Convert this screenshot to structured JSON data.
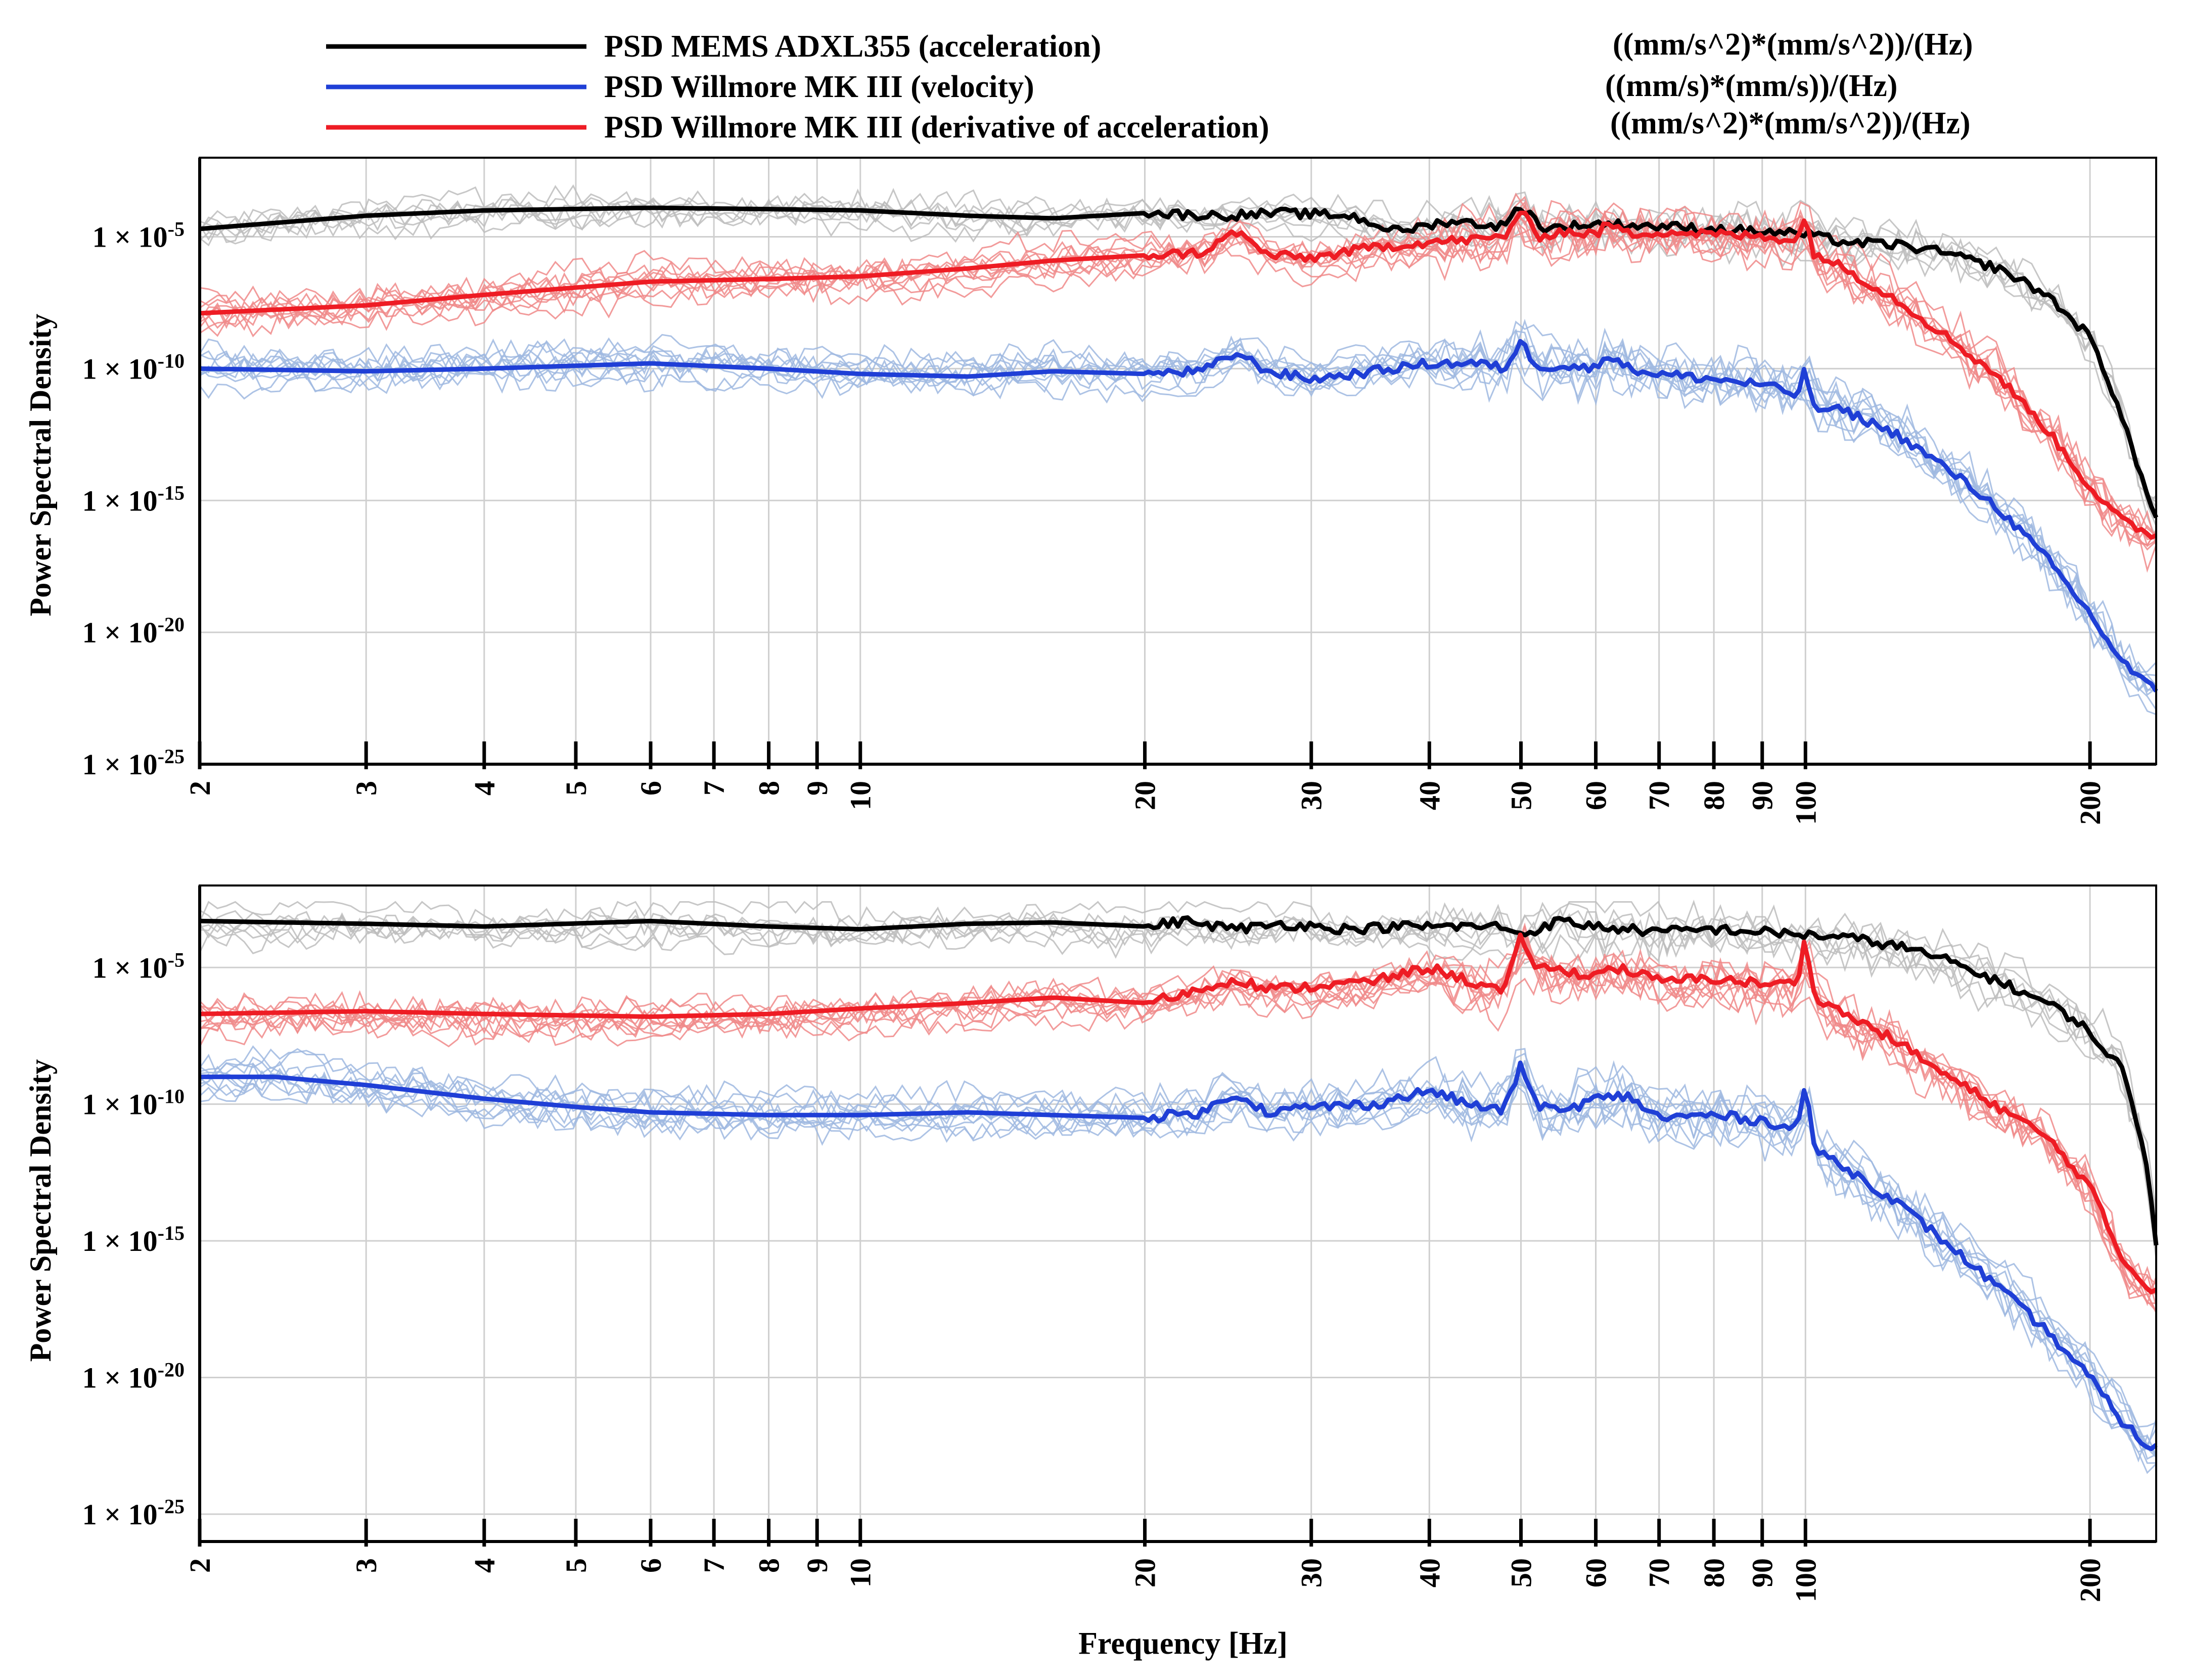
{
  "chart_data": {
    "type": "line",
    "shared": {
      "xscale": "log",
      "xlim": [
        2,
        235
      ],
      "yscale": "log",
      "x_ticks": [
        2,
        3,
        4,
        5,
        6,
        7,
        8,
        9,
        10,
        20,
        30,
        40,
        50,
        60,
        70,
        80,
        90,
        100,
        200
      ],
      "x_tick_labels": [
        "2",
        "3",
        "4",
        "5",
        "6",
        "7",
        "8",
        "9",
        "10",
        "20",
        "30",
        "40",
        "50",
        "60",
        "70",
        "80",
        "90",
        "100",
        "200"
      ],
      "xlabel": "Frequency [Hz]",
      "grid": true,
      "legend": {
        "placement": "top",
        "entries": [
          {
            "label": "PSD MEMS ADXL355 (acceleration)",
            "unit": "((mm/s^2)*(mm/s^2))/(Hz)",
            "color": "#000000"
          },
          {
            "label": "PSD Willmore MK III (velocity)",
            "unit": "((mm/s)*(mm/s))/(Hz)",
            "color": "#1f3fd6"
          },
          {
            "label": "PSD Willmore MK III (derivative of acceleration)",
            "unit": "((mm/s^2)*(mm/s^2))/(Hz)",
            "color": "#ee1c24"
          }
        ]
      },
      "individual_trace_colors": {
        "black": "#bdbdbd",
        "blue": "#9fb8e0",
        "red": "#f08a8a"
      }
    },
    "panels": [
      {
        "ylabel": "Power Spectral Density",
        "ylim_log10": [
          -25,
          -2
        ],
        "y_ticks": [
          {
            "mantissa": "1 × 10",
            "exponent": "-5",
            "log10": -5
          },
          {
            "mantissa": "1 × 10",
            "exponent": "-10",
            "log10": -10
          },
          {
            "mantissa": "1 × 10",
            "exponent": "-15",
            "log10": -15
          },
          {
            "mantissa": "1 × 10",
            "exponent": "-20",
            "log10": -20
          },
          {
            "mantissa": "1 × 10",
            "exponent": "-25",
            "log10": -25
          }
        ],
        "series": [
          {
            "name": "PSD MEMS ADXL355 (acceleration)",
            "color": "#000000",
            "x": [
              2,
              3,
              4,
              6,
              8,
              10,
              13,
              16,
              20,
              24,
              28,
              33,
              37,
              42,
              48,
              50,
              53,
              60,
              70,
              80,
              90,
              100,
              110,
              125,
              140,
              160,
              180,
              200,
              215,
              228,
              235
            ],
            "log10_y": [
              -4.7,
              -4.2,
              -4.0,
              -3.9,
              -3.95,
              -4.0,
              -4.2,
              -4.3,
              -4.1,
              -4.2,
              -4.1,
              -4.2,
              -4.8,
              -4.4,
              -4.6,
              -3.8,
              -4.7,
              -4.5,
              -4.6,
              -4.7,
              -4.8,
              -4.9,
              -5.2,
              -5.3,
              -5.6,
              -6.2,
              -7.2,
              -8.8,
              -11.5,
              -14.5,
              -15.5
            ]
          },
          {
            "name": "PSD Willmore MK III (velocity)",
            "color": "#1f3fd6",
            "x": [
              2,
              3,
              4,
              6,
              8,
              10,
              13,
              16,
              20,
              23,
              25,
              27,
              30,
              35,
              40,
              45,
              48,
              50,
              52,
              55,
              60,
              62,
              65,
              70,
              80,
              90,
              98,
              100,
              102,
              110,
              125,
              140,
              160,
              180,
              200,
              215,
              228,
              235
            ],
            "log10_y": [
              -10.0,
              -10.1,
              -10.0,
              -9.8,
              -10.0,
              -10.2,
              -10.3,
              -10.1,
              -10.2,
              -10.1,
              -9.4,
              -10.1,
              -10.4,
              -10.1,
              -9.8,
              -9.8,
              -10.0,
              -9.0,
              -9.9,
              -9.9,
              -10.0,
              -9.4,
              -10.0,
              -10.2,
              -10.4,
              -10.6,
              -11.0,
              -10.0,
              -11.5,
              -11.6,
              -12.5,
              -13.7,
              -15.3,
              -17.2,
              -19.3,
              -21.0,
              -21.9,
              -22.2
            ]
          },
          {
            "name": "PSD Willmore MK III (derivative of acceleration)",
            "color": "#ee1c24",
            "x": [
              2,
              3,
              4,
              6,
              8,
              10,
              13,
              16,
              20,
              23,
              25,
              27,
              30,
              35,
              40,
              45,
              48,
              50,
              52,
              55,
              60,
              62,
              65,
              70,
              80,
              90,
              98,
              100,
              102,
              110,
              125,
              140,
              160,
              180,
              200,
              215,
              228,
              235
            ],
            "log10_y": [
              -7.9,
              -7.6,
              -7.2,
              -6.7,
              -6.6,
              -6.5,
              -6.2,
              -5.9,
              -5.7,
              -5.6,
              -4.8,
              -5.7,
              -5.8,
              -5.4,
              -5.2,
              -5.1,
              -5.0,
              -4.0,
              -5.0,
              -4.8,
              -4.9,
              -4.5,
              -4.9,
              -4.8,
              -4.9,
              -5.0,
              -5.1,
              -4.3,
              -5.6,
              -6.2,
              -7.4,
              -8.7,
              -10.3,
              -12.3,
              -14.5,
              -15.7,
              -16.2,
              -16.3
            ]
          }
        ]
      },
      {
        "ylabel": "Power Spectral Density",
        "ylim_log10": [
          -26,
          -2
        ],
        "y_ticks": [
          {
            "mantissa": "1 × 10",
            "exponent": "-5",
            "log10": -5
          },
          {
            "mantissa": "1 × 10",
            "exponent": "-10",
            "log10": -10
          },
          {
            "mantissa": "1 × 10",
            "exponent": "-15",
            "log10": -15
          },
          {
            "mantissa": "1 × 10",
            "exponent": "-20",
            "log10": -20
          },
          {
            "mantissa": "1 × 10",
            "exponent": "-25",
            "log10": -25
          }
        ],
        "series": [
          {
            "name": "PSD MEMS ADXL355 (acceleration)",
            "color": "#000000",
            "x": [
              2,
              3,
              4,
              6,
              8,
              10,
              13,
              16,
              20,
              22,
              25,
              28,
              33,
              37,
              42,
              48,
              50,
              55,
              60,
              70,
              80,
              90,
              100,
              110,
              125,
              140,
              160,
              180,
              195,
              200,
              215,
              228,
              235
            ],
            "log10_y": [
              -3.3,
              -3.4,
              -3.5,
              -3.3,
              -3.5,
              -3.6,
              -3.4,
              -3.35,
              -3.5,
              -3.3,
              -3.6,
              -3.4,
              -3.6,
              -3.5,
              -3.5,
              -3.5,
              -3.8,
              -3.3,
              -3.5,
              -3.7,
              -3.6,
              -3.7,
              -3.8,
              -3.9,
              -4.2,
              -4.7,
              -5.5,
              -6.3,
              -7.0,
              -7.5,
              -8.5,
              -11.5,
              -15.0
            ]
          },
          {
            "name": "PSD Willmore MK III (velocity)",
            "color": "#1f3fd6",
            "x": [
              2,
              2.4,
              3,
              4,
              5,
              6,
              8,
              10,
              13,
              16,
              20,
              23,
              25,
              27,
              30,
              35,
              40,
              45,
              48,
              50,
              52,
              55,
              60,
              65,
              70,
              80,
              90,
              98,
              100,
              102,
              110,
              125,
              140,
              160,
              180,
              200,
              215,
              228,
              235
            ],
            "log10_y": [
              -9.0,
              -9.0,
              -9.3,
              -9.8,
              -10.1,
              -10.3,
              -10.4,
              -10.4,
              -10.3,
              -10.4,
              -10.5,
              -10.3,
              -9.6,
              -10.3,
              -10.1,
              -10.0,
              -9.5,
              -10.1,
              -10.2,
              -8.6,
              -10.0,
              -10.3,
              -9.8,
              -9.7,
              -10.5,
              -10.4,
              -10.6,
              -10.9,
              -9.1,
              -11.6,
              -12.3,
              -13.6,
              -15.0,
              -16.7,
              -18.3,
              -20.0,
              -21.5,
              -22.4,
              -22.6
            ]
          },
          {
            "name": "PSD Willmore MK III (derivative of acceleration)",
            "color": "#ee1c24",
            "x": [
              2,
              3,
              4,
              6,
              8,
              10,
              13,
              16,
              20,
              23,
              25,
              27,
              30,
              35,
              40,
              45,
              48,
              50,
              52,
              55,
              60,
              62,
              65,
              70,
              80,
              90,
              98,
              100,
              102,
              110,
              125,
              140,
              160,
              180,
              200,
              215,
              228,
              235
            ],
            "log10_y": [
              -6.7,
              -6.6,
              -6.7,
              -6.8,
              -6.7,
              -6.5,
              -6.3,
              -6.1,
              -6.3,
              -5.8,
              -5.4,
              -5.8,
              -5.7,
              -5.5,
              -5.0,
              -5.6,
              -5.9,
              -3.9,
              -5.0,
              -5.1,
              -5.3,
              -5.0,
              -5.1,
              -5.5,
              -5.4,
              -5.6,
              -5.6,
              -3.7,
              -6.0,
              -6.7,
              -7.7,
              -8.9,
              -10.1,
              -11.2,
              -13.0,
              -15.5,
              -16.6,
              -16.8
            ]
          }
        ]
      }
    ]
  }
}
